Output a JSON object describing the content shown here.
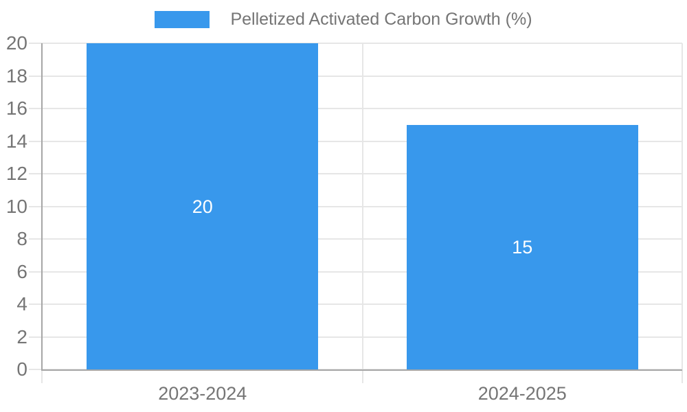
{
  "chart_data": {
    "type": "bar",
    "categories": [
      "2023-2024",
      "2024-2025"
    ],
    "series": [
      {
        "name": "Pelletized Activated Carbon Growth (%)",
        "values": [
          20,
          15
        ]
      }
    ],
    "bar_value_labels": [
      "20",
      "15"
    ],
    "title": "",
    "xlabel": "",
    "ylabel": "",
    "ylim": [
      0,
      20
    ],
    "ytick_step": 2,
    "yticks": [
      0,
      2,
      4,
      6,
      8,
      10,
      12,
      14,
      16,
      18,
      20
    ],
    "grid": true,
    "legend_position": "top-center",
    "colors": {
      "bar": "#3898EC",
      "grid_line": "#E6E6E6",
      "axis_line": "#A6A6A6",
      "tick_text": "#757575",
      "bar_label_text": "#FFFFFF",
      "background": "#FFFFFF"
    }
  }
}
